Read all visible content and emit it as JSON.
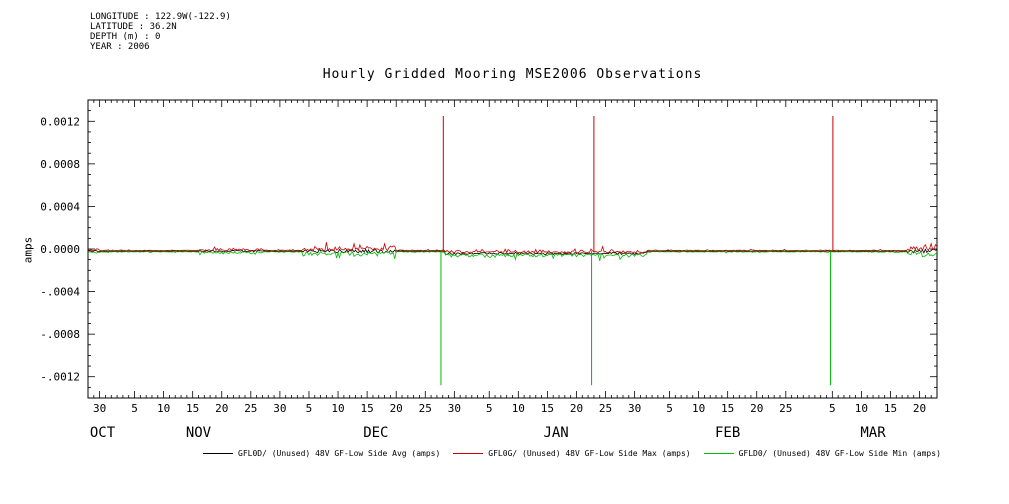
{
  "meta": {
    "longitude": "LONGITUDE : 122.9W(-122.9)",
    "latitude": "LATITUDE : 36.2N",
    "depth": "DEPTH (m) : 0",
    "year": "YEAR : 2006"
  },
  "chart_data": {
    "type": "line",
    "title": "Hourly Gridded Mooring MSE2006 Observations",
    "ylabel": "amps",
    "ylim": [
      -0.0014,
      0.0014
    ],
    "x_range": [
      0,
      146
    ],
    "x_note": "day index from plot start (late OCT 2005) to end (late MAR 2006)",
    "grid": false,
    "legend_position": "bottom",
    "yticks": [
      {
        "v": 0.0012,
        "label": "0.0012"
      },
      {
        "v": 0.0008,
        "label": "0.0008"
      },
      {
        "v": 0.0004,
        "label": "0.0004"
      },
      {
        "v": 0.0,
        "label": "0.0000"
      },
      {
        "v": -0.0004,
        "label": "-.0004"
      },
      {
        "v": -0.0008,
        "label": "-.0008"
      },
      {
        "v": -0.0012,
        "label": "-.0012"
      }
    ],
    "x_ticks": [
      {
        "day": 2,
        "label": "30"
      },
      {
        "day": 8,
        "label": "5"
      },
      {
        "day": 13,
        "label": "10"
      },
      {
        "day": 18,
        "label": "15"
      },
      {
        "day": 23,
        "label": "20"
      },
      {
        "day": 28,
        "label": "25"
      },
      {
        "day": 33,
        "label": "30"
      },
      {
        "day": 38,
        "label": "5"
      },
      {
        "day": 43,
        "label": "10"
      },
      {
        "day": 48,
        "label": "15"
      },
      {
        "day": 53,
        "label": "20"
      },
      {
        "day": 58,
        "label": "25"
      },
      {
        "day": 63,
        "label": "30"
      },
      {
        "day": 69,
        "label": "5"
      },
      {
        "day": 74,
        "label": "10"
      },
      {
        "day": 79,
        "label": "15"
      },
      {
        "day": 84,
        "label": "20"
      },
      {
        "day": 89,
        "label": "25"
      },
      {
        "day": 94,
        "label": "30"
      },
      {
        "day": 100,
        "label": "5"
      },
      {
        "day": 105,
        "label": "10"
      },
      {
        "day": 110,
        "label": "15"
      },
      {
        "day": 115,
        "label": "20"
      },
      {
        "day": 120,
        "label": "25"
      },
      {
        "day": 128,
        "label": "5"
      },
      {
        "day": 133,
        "label": "10"
      },
      {
        "day": 138,
        "label": "15"
      },
      {
        "day": 143,
        "label": "20"
      }
    ],
    "months": [
      {
        "label": "OCT",
        "center_day": 2.5
      },
      {
        "label": "NOV",
        "center_day": 19
      },
      {
        "label": "DEC",
        "center_day": 49.5
      },
      {
        "label": "JAN",
        "center_day": 80.5
      },
      {
        "label": "FEB",
        "center_day": 110
      },
      {
        "label": "MAR",
        "center_day": 135
      }
    ],
    "baseline": -2e-05,
    "base_noise": 6e-06,
    "noise_intervals": [
      {
        "start": 0,
        "end": 2,
        "amp": 2e-05
      },
      {
        "start": 19,
        "end": 30,
        "amp": 2.2e-05
      },
      {
        "start": 37,
        "end": 53,
        "amp": 5e-05
      },
      {
        "start": 61.3,
        "end": 96,
        "amp": 3e-05,
        "offset": -2.2e-05
      },
      {
        "start": 141,
        "end": 146,
        "amp": 5e-05
      }
    ],
    "series": [
      {
        "role": "avg",
        "legend": "GFL0D/ (Unused) 48V GF-Low Side Avg (amps)",
        "color": "#000000",
        "spikes": []
      },
      {
        "role": "max",
        "legend": "GFL0G/ (Unused) 48V GF-Low Side Max (amps)",
        "color": "#cc0000",
        "spikes": [
          {
            "day": 61.1,
            "value": 0.00125
          },
          {
            "day": 87.0,
            "value": 0.00125
          },
          {
            "day": 128.1,
            "value": 0.00125
          }
        ]
      },
      {
        "role": "min",
        "legend": "GFLD0/ (Unused) 48V GF-Low Side Min (amps)",
        "color": "#00bb00",
        "spikes": [
          {
            "day": 60.7,
            "value": -0.00128
          },
          {
            "day": 86.6,
            "value": -0.00128
          },
          {
            "day": 127.7,
            "value": -0.00128
          }
        ]
      }
    ]
  }
}
